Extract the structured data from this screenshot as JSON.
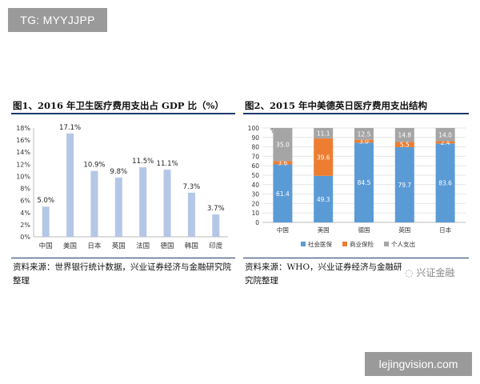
{
  "tag_label": "TG: MYYJJPP",
  "watermark_site": "lejingvision.com",
  "watermark_brand": "兴证金融",
  "left_panel": {
    "title": "图1、2016 年卫生医疗费用支出占 GDP 比（%）",
    "source": "资料来源：世界银行统计数据，兴业证券经济与金融研究院整理"
  },
  "right_panel": {
    "title": "图2、2015 年中美德英日医疗费用支出结构",
    "source": "资料来源：WHO，兴业证券经济与金融研究院整理"
  },
  "colors": {
    "bar_light": "#b4c7e7",
    "social": "#5b9bd5",
    "commercial": "#ed7d31",
    "personal": "#a5a5a5",
    "rule": "#1f3a6b"
  },
  "chart_data": [
    {
      "type": "bar",
      "categories": [
        "中国",
        "美国",
        "日本",
        "英国",
        "法国",
        "德国",
        "韩国",
        "印度"
      ],
      "values": [
        5.0,
        17.1,
        10.9,
        9.8,
        11.5,
        11.1,
        7.3,
        3.7
      ],
      "data_labels": [
        "5.0%",
        "17.1%",
        "10.9%",
        "9.8%",
        "11.5%",
        "11.1%",
        "7.3%",
        "3.7%"
      ],
      "y_ticks": [
        "0%",
        "2%",
        "4%",
        "6%",
        "8%",
        "10%",
        "12%",
        "14%",
        "16%",
        "18%"
      ],
      "ylim": [
        0,
        18
      ]
    },
    {
      "type": "bar",
      "stacked": true,
      "categories": [
        "中国",
        "美国",
        "德国",
        "英国",
        "日本"
      ],
      "unit_label": "%",
      "y_ticks": [
        "0",
        "10",
        "20",
        "30",
        "40",
        "50",
        "60",
        "70",
        "80",
        "90",
        "100"
      ],
      "ylim": [
        0,
        100
      ],
      "legend_position": "bottom",
      "series": [
        {
          "name": "社会医保",
          "values": [
            61.4,
            49.3,
            84.5,
            79.7,
            83.6
          ],
          "labels": [
            "61.4",
            "49.3",
            "84.5",
            "79.7",
            "83.6"
          ]
        },
        {
          "name": "商业保险",
          "values": [
            3.6,
            39.6,
            3.0,
            5.5,
            2.4
          ],
          "labels": [
            "3.6",
            "39.6",
            "3.0",
            "5.5",
            "2.4"
          ]
        },
        {
          "name": "个人支出",
          "values": [
            35.0,
            11.1,
            12.5,
            14.8,
            14.0
          ],
          "labels": [
            "35.0",
            "11.1",
            "12.5",
            "14.8",
            "14.0"
          ]
        }
      ]
    }
  ]
}
